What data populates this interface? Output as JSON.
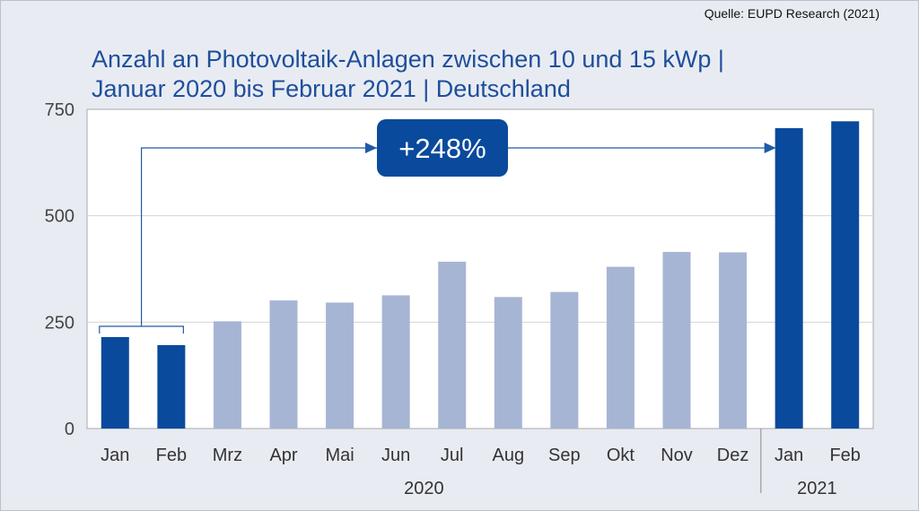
{
  "source_label": "Quelle: EUPD Research (2021)",
  "chart_data": {
    "type": "bar",
    "title_line1": "Anzahl an Photovoltaik-Anlagen zwischen 10 und 15 kWp |",
    "title_line2": "Januar 2020 bis Februar 2021 | Deutschland",
    "categories": [
      "Jan",
      "Feb",
      "Mrz",
      "Apr",
      "Mai",
      "Jun",
      "Jul",
      "Aug",
      "Sep",
      "Okt",
      "Nov",
      "Dez",
      "Jan",
      "Feb"
    ],
    "values": [
      215,
      196,
      252,
      301,
      296,
      313,
      392,
      309,
      321,
      380,
      415,
      414,
      706,
      722
    ],
    "highlight": [
      true,
      true,
      false,
      false,
      false,
      false,
      false,
      false,
      false,
      false,
      false,
      false,
      true,
      true
    ],
    "year_groups": [
      {
        "label": "2020",
        "start": 0,
        "end": 11
      },
      {
        "label": "2021",
        "start": 12,
        "end": 13
      }
    ],
    "ylim": [
      0,
      750
    ],
    "yticks": [
      0,
      250,
      500,
      750
    ],
    "grid": true,
    "annotation": {
      "text": "+248%",
      "from": [
        0,
        1
      ],
      "to": [
        12,
        13
      ]
    },
    "colors": {
      "highlight": "#0a4a9c",
      "normal": "#a7b5d4",
      "annotation_bg": "#0a4a9c",
      "arrow": "#1f5aa6"
    }
  }
}
